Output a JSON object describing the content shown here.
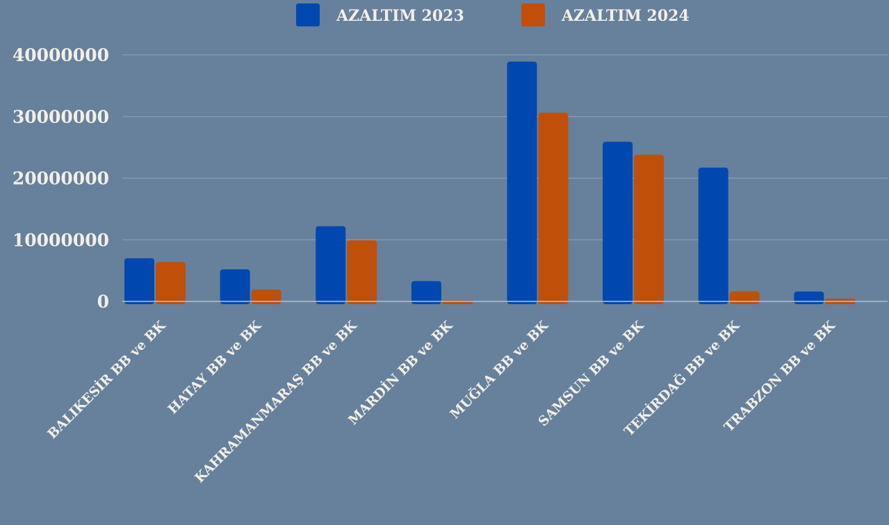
{
  "chart_data": {
    "type": "bar",
    "categories": [
      "BALIKESİR BB ve BK",
      "HATAY BB ve BK",
      "KAHRAMANMARAŞ BB ve BK",
      "MARDİN BB ve BK",
      "MUĞLA BB ve BK",
      "SAMSUN BB ve BK",
      "TEKİRDAĞ BB ve BK",
      "TRABZON BB ve BK"
    ],
    "series": [
      {
        "name": "AZALTIM 2023",
        "color": "#0048b0",
        "values": [
          7000000,
          5200000,
          12200000,
          3300000,
          38900000,
          25900000,
          21700000,
          1600000
        ]
      },
      {
        "name": "AZALTIM 2024",
        "color": "#c04f0a",
        "values": [
          6400000,
          1900000,
          9900000,
          150000,
          30600000,
          23800000,
          1600000,
          450000
        ]
      }
    ],
    "ylim": [
      0,
      40000000
    ],
    "yticks": [
      0,
      10000000,
      20000000,
      30000000,
      40000000
    ],
    "ytick_labels": [
      "0",
      "10000000",
      "20000000",
      "30000000",
      "40000000"
    ],
    "grid": true,
    "legend_position": "top-center",
    "title": "",
    "xlabel": "",
    "ylabel": ""
  }
}
